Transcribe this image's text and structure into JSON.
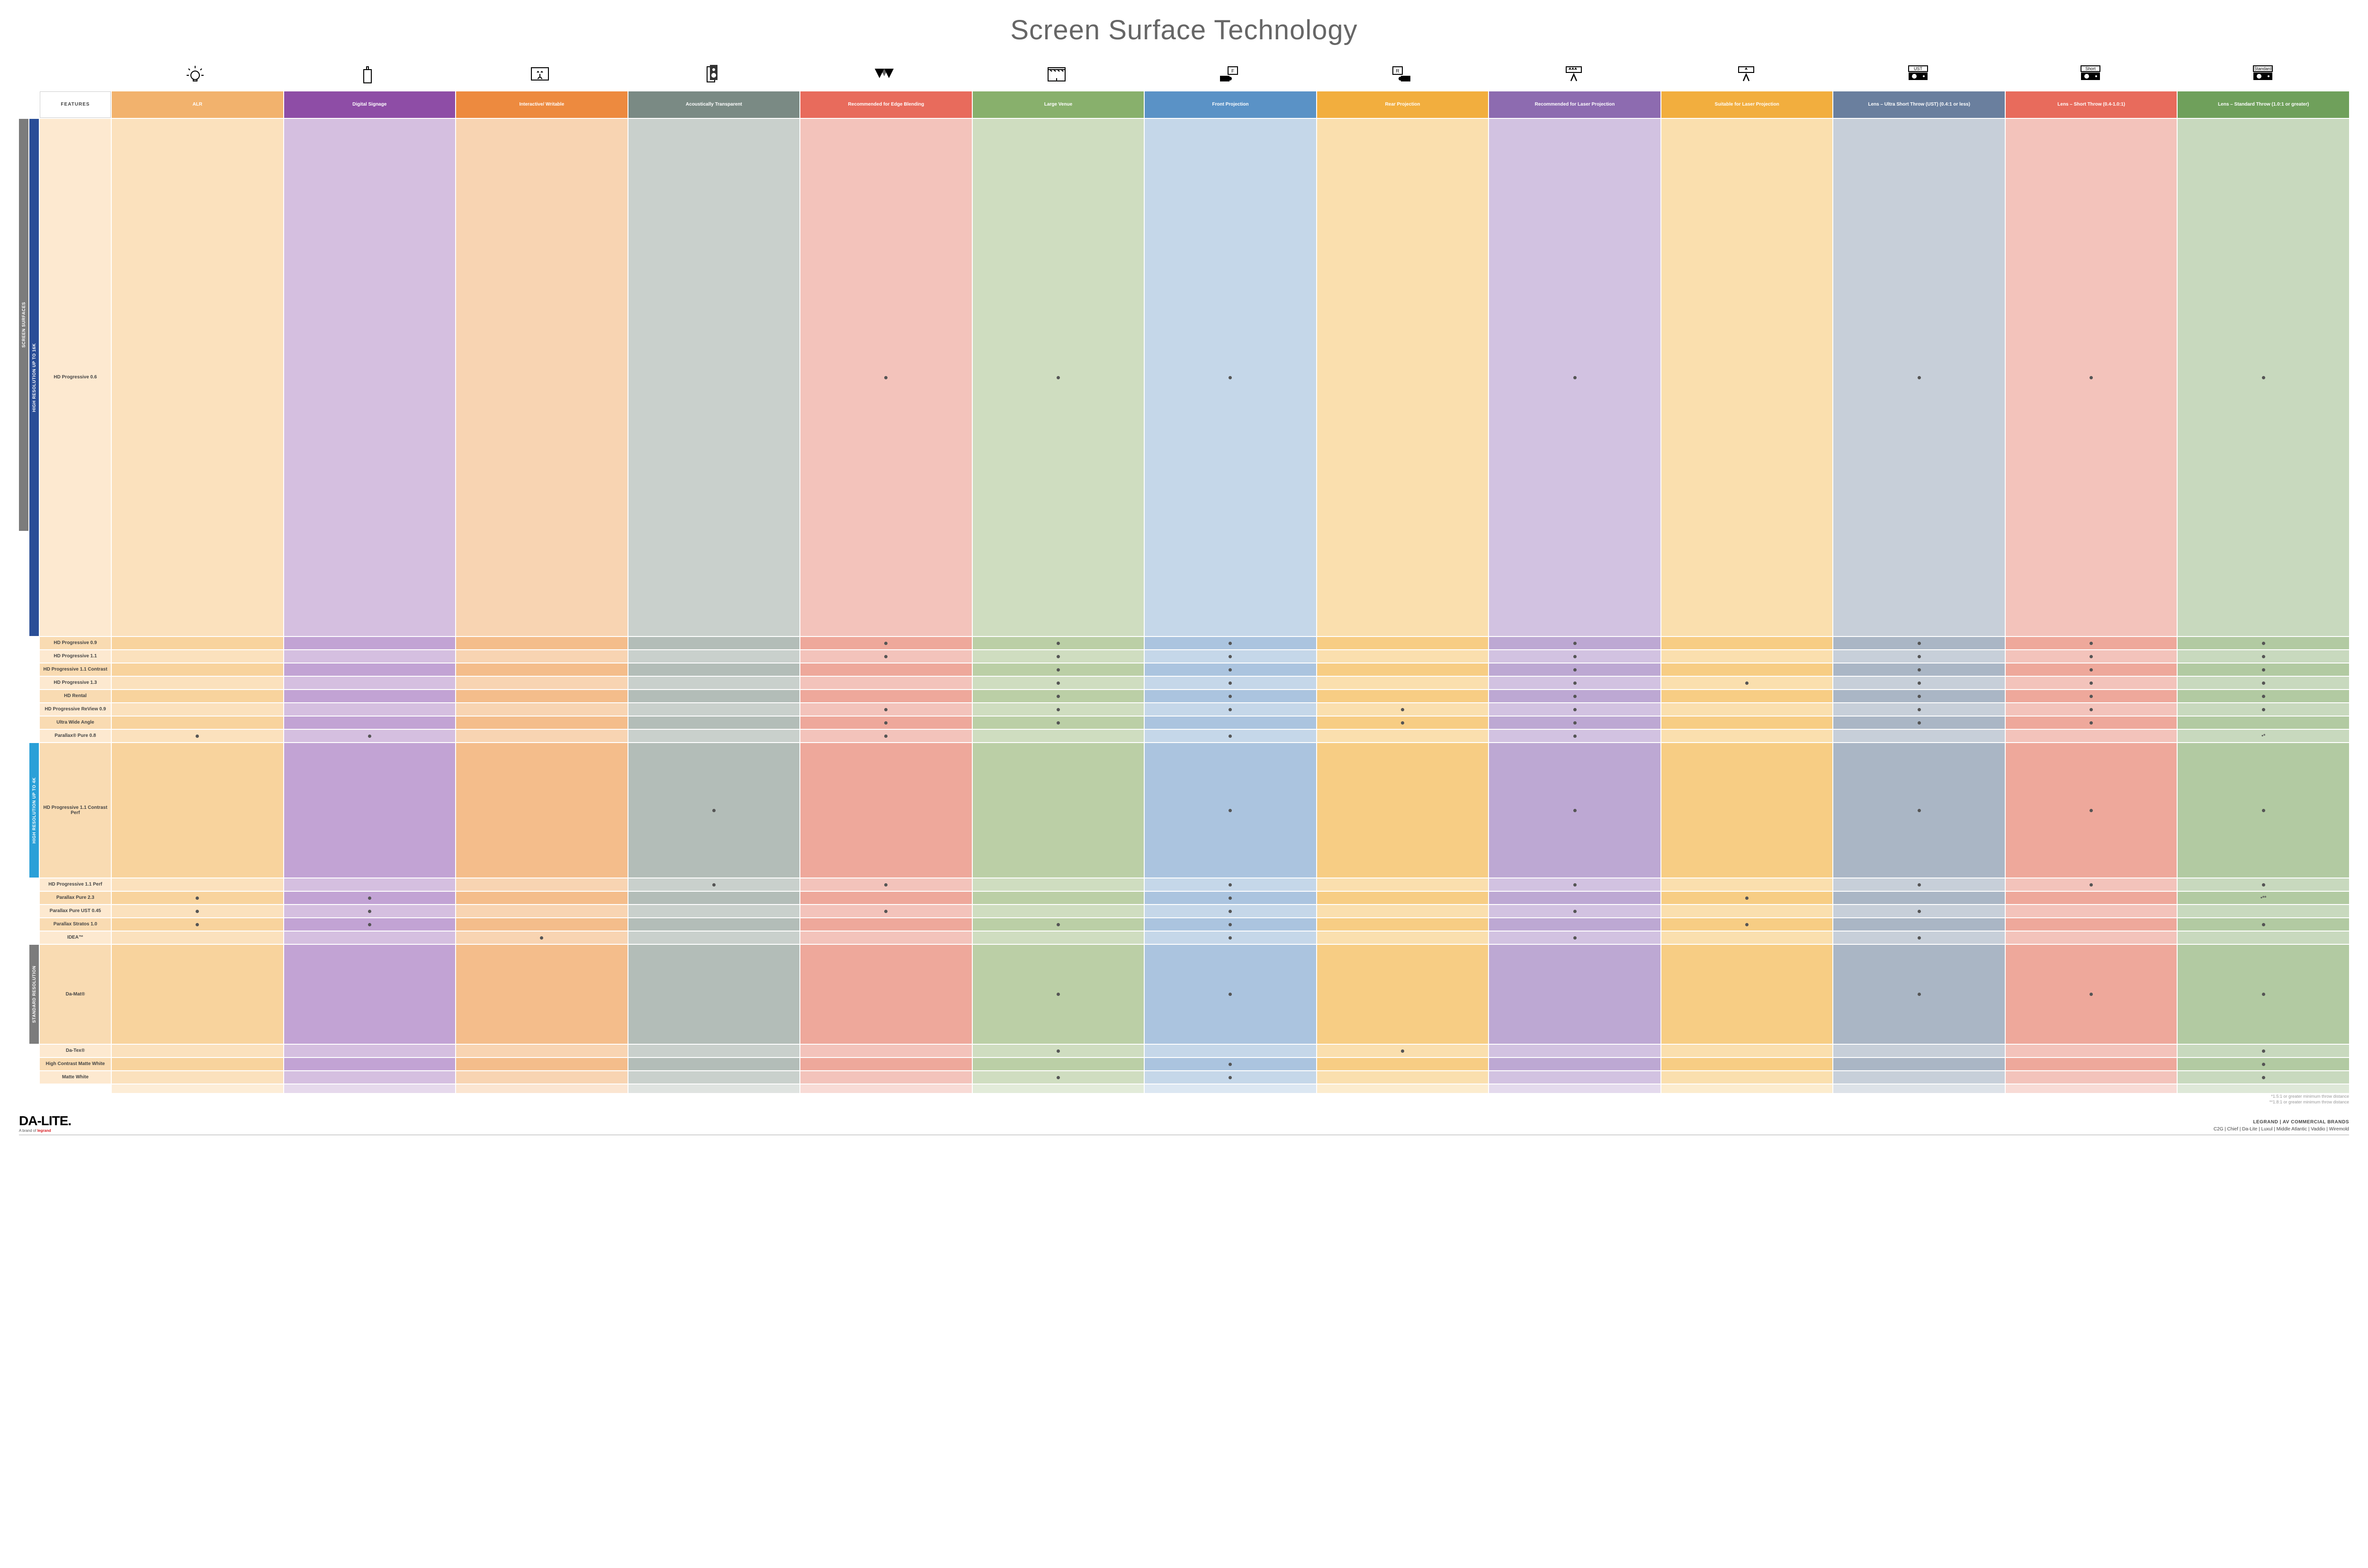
{
  "title": "Screen Surface Technology",
  "features_header": "FEATURES",
  "colors": {
    "col_bg": [
      "#f2b26d",
      "#8e4da6",
      "#ed8a3f",
      "#7a8a84",
      "#e86b5c",
      "#88b06c",
      "#5a92c6",
      "#f2ae3e",
      "#8d6bb0",
      "#f2ae3e",
      "#6a7f9e",
      "#e86b5c",
      "#6fa05b"
    ],
    "col_tint": {
      "alr": [
        "#fbe1bd",
        "#f8d39d"
      ],
      "signage": [
        "#d5bfe0",
        "#c2a3d4"
      ],
      "interact": [
        "#f8d4b2",
        "#f4bd8b"
      ],
      "acoustic": [
        "#c9d0cc",
        "#b3bdb8"
      ],
      "edge": [
        "#f3c3bb",
        "#eea89b"
      ],
      "venue": [
        "#cfddc0",
        "#bbcfa6"
      ],
      "front": [
        "#c5d7e9",
        "#abc4df"
      ],
      "rear": [
        "#fadfae",
        "#f7cd84"
      ],
      "reclaser": [
        "#d2c2e1",
        "#bda8d3"
      ],
      "suitlaser": [
        "#fadfae",
        "#f7cd84"
      ],
      "ust": [
        "#c7cfd9",
        "#aab6c5"
      ],
      "short": [
        "#f3c3bb",
        "#eea89b"
      ],
      "std": [
        "#c8d9be",
        "#b2caa2"
      ]
    },
    "group_bg": [
      "#2a4e97",
      "#2aa0d8",
      "#7c7c7c"
    ],
    "outer_bg": "#7c7c7c",
    "row_label_bg": [
      "#fde9d0",
      "#f9dbb2"
    ]
  },
  "columns": [
    {
      "key": "alr",
      "label": "ALR",
      "icon": "bulb"
    },
    {
      "key": "signage",
      "label": "Digital Signage",
      "icon": "signage"
    },
    {
      "key": "interact",
      "label": "Interactive/ Writable",
      "icon": "touch"
    },
    {
      "key": "acoustic",
      "label": "Acoustically Transparent",
      "icon": "speaker"
    },
    {
      "key": "edge",
      "label": "Recommended for Edge Blending",
      "icon": "triangles"
    },
    {
      "key": "venue",
      "label": "Large Venue",
      "icon": "stage"
    },
    {
      "key": "front",
      "label": "Front Projection",
      "icon": "front"
    },
    {
      "key": "rear",
      "label": "Rear Projection",
      "icon": "rear"
    },
    {
      "key": "reclaser",
      "label": "Recommended for Laser Projection",
      "icon": "laser3"
    },
    {
      "key": "suitlaser",
      "label": "Suitable for Laser Projection",
      "icon": "laser1"
    },
    {
      "key": "ust",
      "label": "Lens – Ultra Short Throw (UST) (0.4:1 or less)",
      "icon": "proj",
      "icon_label": "UST"
    },
    {
      "key": "short",
      "label": "Lens – Short Throw (0.4-1.0:1)",
      "icon": "proj",
      "icon_label": "Short"
    },
    {
      "key": "std",
      "label": "Lens – Standard Throw (1.0:1 or greater)",
      "icon": "proj",
      "icon_label": "Standard"
    }
  ],
  "outer_label": "SCREEN SURFACES",
  "groups": [
    {
      "label": "HIGH RESOLUTION UP TO 16K",
      "count": 9
    },
    {
      "label": "HIGH RESOLUTION UP TO 4K",
      "count": 6
    },
    {
      "label": "STANDARD RESOLUTION",
      "count": 4
    }
  ],
  "rows": [
    {
      "name": "HD Progressive 0.6",
      "cells": {
        "edge": "•",
        "venue": "•",
        "front": "•",
        "reclaser": "•",
        "ust": "•",
        "short": "•",
        "std": "•"
      }
    },
    {
      "name": "HD Progressive 0.9",
      "cells": {
        "edge": "•",
        "venue": "•",
        "front": "•",
        "reclaser": "•",
        "ust": "•",
        "short": "•",
        "std": "•"
      }
    },
    {
      "name": "HD Progressive 1.1",
      "cells": {
        "edge": "•",
        "venue": "•",
        "front": "•",
        "reclaser": "•",
        "ust": "•",
        "short": "•",
        "std": "•"
      }
    },
    {
      "name": "HD Progressive 1.1 Contrast",
      "cells": {
        "venue": "•",
        "front": "•",
        "reclaser": "•",
        "ust": "•",
        "short": "•",
        "std": "•"
      }
    },
    {
      "name": "HD Progressive 1.3",
      "cells": {
        "venue": "•",
        "front": "•",
        "reclaser": "•",
        "suitlaser": "•",
        "ust": "•",
        "short": "•",
        "std": "•"
      }
    },
    {
      "name": "HD Rental",
      "cells": {
        "venue": "•",
        "front": "•",
        "reclaser": "•",
        "ust": "•",
        "short": "•",
        "std": "•"
      }
    },
    {
      "name": "HD Progressive ReView 0.9",
      "cells": {
        "edge": "•",
        "venue": "•",
        "front": "•",
        "rear": "•",
        "reclaser": "•",
        "ust": "•",
        "short": "•",
        "std": "•"
      }
    },
    {
      "name": "Ultra Wide Angle",
      "cells": {
        "edge": "•",
        "venue": "•",
        "rear": "•",
        "reclaser": "•",
        "ust": "•",
        "short": "•"
      }
    },
    {
      "name": "Parallax® Pure 0.8",
      "cells": {
        "alr": "•",
        "signage": "•",
        "edge": "•",
        "front": "•",
        "reclaser": "•",
        "std": "•*"
      }
    },
    {
      "name": "HD Progressive 1.1 Contrast Perf",
      "cells": {
        "acoustic": "•",
        "front": "•",
        "reclaser": "•",
        "ust": "•",
        "short": "•",
        "std": "•"
      }
    },
    {
      "name": "HD Progressive 1.1 Perf",
      "cells": {
        "acoustic": "•",
        "edge": "•",
        "front": "•",
        "reclaser": "•",
        "ust": "•",
        "short": "•",
        "std": "•"
      }
    },
    {
      "name": "Parallax Pure 2.3",
      "cells": {
        "alr": "•",
        "signage": "•",
        "front": "•",
        "suitlaser": "•",
        "std": "•**"
      }
    },
    {
      "name": "Parallax Pure UST 0.45",
      "cells": {
        "alr": "•",
        "signage": "•",
        "edge": "•",
        "front": "•",
        "reclaser": "•",
        "ust": "•"
      }
    },
    {
      "name": "Parallax Stratos 1.0",
      "cells": {
        "alr": "•",
        "signage": "•",
        "venue": "•",
        "front": "•",
        "suitlaser": "•",
        "std": "•"
      }
    },
    {
      "name": "IDEA™",
      "cells": {
        "interact": "•",
        "front": "•",
        "reclaser": "•",
        "ust": "•"
      }
    },
    {
      "name": "Da-Mat®",
      "cells": {
        "venue": "•",
        "front": "•",
        "ust": "•",
        "short": "•",
        "std": "•"
      }
    },
    {
      "name": "Da-Tex®",
      "cells": {
        "venue": "•",
        "rear": "•",
        "std": "•"
      }
    },
    {
      "name": "High Contrast Matte White",
      "cells": {
        "front": "•",
        "std": "•"
      }
    },
    {
      "name": "Matte White",
      "cells": {
        "venue": "•",
        "front": "•",
        "std": "•"
      }
    }
  ],
  "footnotes": [
    "*1.5:1 or greater minimum throw distance",
    "**1.8:1 or greater minimum throw distance"
  ],
  "footer": {
    "logo": "DA-LITE.",
    "logo_sub_prefix": "A brand of ",
    "logo_sub_brand": "legrand",
    "right_title": "LEGRAND | AV COMMERCIAL BRANDS",
    "right_brands": "C2G  |  Chief  |  Da-Lite  |  Luxul  |  Middle Atlantic  |  Vaddio  |  Wiremold"
  },
  "icons": {
    "bulb": "<svg viewBox='0 0 48 48' fill='none' stroke='#000' stroke-width='2'><circle cx='24' cy='26' r='9'/><path d='M20 34v4h8v-4'/><path d='M24 6v5M10 12l3 3M38 12l-3 3M6 26h5M37 26h5'/></svg>",
    "signage": "<svg viewBox='0 0 48 48' fill='none' stroke='#000' stroke-width='2'><rect x='16' y='14' width='16' height='28'/><path d='M22 14V8h4v6'/></svg>",
    "touch": "<svg viewBox='0 0 48 48' fill='none' stroke='#000' stroke-width='2'><rect x='6' y='10' width='36' height='26'/><path d='M24 30v-7m0 7c-2 0-4 2-4 4m4-4c2 0 4 2 4 4M18 20l2-2 2 2m4 0l2-2 2 2'/></svg>",
    "speaker": "<svg viewBox='0 0 48 48' fill='none' stroke='#000' stroke-width='2'><rect x='14' y='8' width='16' height='32' fill='#fff'/><rect x='20' y='4' width='16' height='32' fill='#333' stroke='none'/><circle cx='28' cy='14' r='3' fill='#fff' stroke='none'/><circle cx='28' cy='26' r='5' fill='#fff' stroke='none'/></svg>",
    "triangles": "<svg viewBox='0 0 48 48' fill='#000'><path d='M4 12L14 32L24 12Z'/><path d='M16 12L24 28L32 12Z' opacity='.6'/><path d='M24 12L34 32L44 12Z'/></svg>",
    "stage": "<svg viewBox='0 0 48 48' fill='none' stroke='#000' stroke-width='2'><rect x='6' y='10' width='36' height='28'/><path d='M6 14h36M10 14l4 4m4-4l4 4m4-4l4 4m4-4l4 4M24 38v-6'/></svg>",
    "front": "<svg viewBox='0 0 48 48' fill='none' stroke='#000' stroke-width='2'><rect x='22' y='8' width='20' height='16'/><text x='32' y='20' font-size='10' text-anchor='middle' fill='#000' stroke='none'>F</text><rect x='6' y='28' width='18' height='10' fill='#000'/><circle cx='26' cy='33' r='3' fill='#000'/></svg>",
    "rear": "<svg viewBox='0 0 48 48' fill='none' stroke='#000' stroke-width='2'><rect x='6' y='8' width='20' height='16'/><text x='16' y='20' font-size='10' text-anchor='middle' fill='#000' stroke='none'>R</text><rect x='24' y='28' width='18' height='10' fill='#000'/><circle cx='22' cy='33' r='3' fill='#000'/></svg>",
    "laser3": "<svg viewBox='0 0 48 48' fill='none' stroke='#000' stroke-width='2'><rect x='8' y='8' width='32' height='12'/><path d='M14 14l2-3 2 3m2 0l2-3 2 3m2 0l2-3 2 3'/><path d='M18 38l6-14 6 14' stroke-width='2.5'/></svg>",
    "laser1": "<svg viewBox='0 0 48 48' fill='none' stroke='#000' stroke-width='2'><rect x='8' y='8' width='32' height='12'/><path d='M22 14l2-3 2 3'/><path d='M18 38l6-14 6 14' stroke-width='2.5'/></svg>",
    "proj": "<svg viewBox='0 0 48 48'><rect x='4' y='8' width='40' height='12' fill='#fff' stroke='#000' stroke-width='2'/><rect x='4' y='22' width='40' height='16' fill='#000'/><circle cx='16' cy='30' r='5' fill='#fff'/><circle cx='36' cy='30' r='2' fill='#fff'/></svg>"
  }
}
